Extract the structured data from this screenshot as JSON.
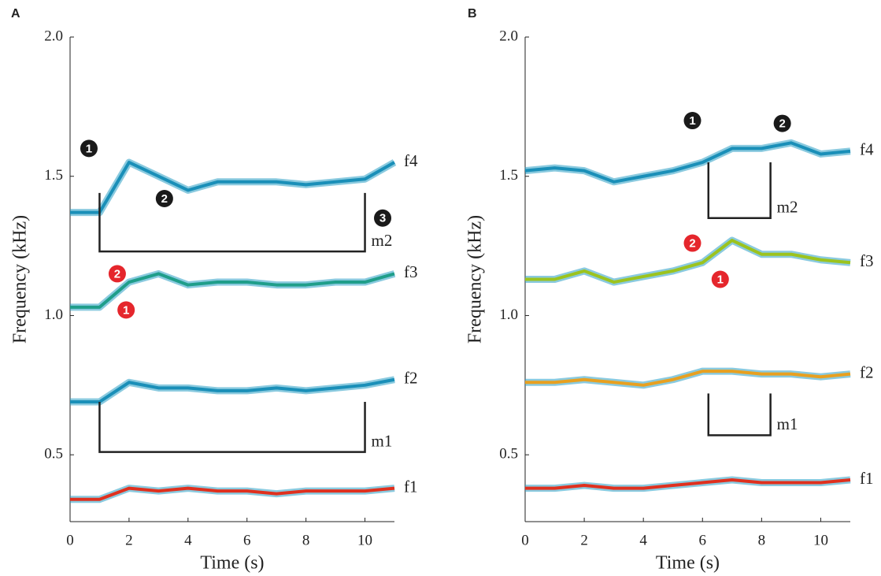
{
  "chart_data": [
    {
      "type": "spectrogram",
      "panel": "A",
      "xlabel": "Time (s)",
      "ylabel": "Frequency (kHz)",
      "xlim": [
        0,
        11
      ],
      "ylim": [
        0.26,
        2.0
      ],
      "xticks": [
        0,
        2,
        4,
        6,
        8,
        10
      ],
      "yticks": [
        0.5,
        {
          "value": 1,
          "label": "1.0"
        },
        1.5,
        {
          "value": 2,
          "label": "2.0"
        }
      ],
      "x": [
        0,
        1,
        2,
        3,
        4,
        5,
        6,
        7,
        8,
        9,
        10,
        11
      ],
      "series": [
        {
          "name": "f1",
          "color": "#e0301e",
          "values": [
            0.34,
            0.34,
            0.38,
            0.37,
            0.38,
            0.37,
            0.37,
            0.36,
            0.37,
            0.37,
            0.37,
            0.38
          ]
        },
        {
          "name": "f2",
          "color": "#1a8fb8",
          "values": [
            0.69,
            0.69,
            0.76,
            0.74,
            0.74,
            0.73,
            0.73,
            0.74,
            0.73,
            0.74,
            0.75,
            0.77
          ]
        },
        {
          "name": "f3",
          "color": "#1f9e8a",
          "values": [
            1.03,
            1.03,
            1.12,
            1.15,
            1.11,
            1.12,
            1.12,
            1.11,
            1.11,
            1.12,
            1.12,
            1.15
          ]
        },
        {
          "name": "f4",
          "color": "#1a8fb8",
          "values": [
            1.37,
            1.37,
            1.55,
            1.5,
            1.45,
            1.48,
            1.48,
            1.48,
            1.47,
            1.48,
            1.49,
            1.55
          ]
        }
      ],
      "brackets": [
        {
          "label": "m2",
          "x": [
            1,
            10
          ],
          "y": 1.23,
          "top": 1.44
        },
        {
          "label": "m1",
          "x": [
            1,
            10
          ],
          "y": 0.51,
          "top": 0.69
        }
      ],
      "markers": [
        {
          "label": "1",
          "color": "#1a1a1a",
          "t": 0.64,
          "f": 1.6
        },
        {
          "label": "2",
          "color": "#1a1a1a",
          "t": 3.2,
          "f": 1.42
        },
        {
          "label": "3",
          "color": "#1a1a1a",
          "t": 10.6,
          "f": 1.35
        },
        {
          "label": "2",
          "color": "#e5262c",
          "t": 1.6,
          "f": 1.15
        },
        {
          "label": "1",
          "color": "#e5262c",
          "t": 1.9,
          "f": 1.02
        }
      ]
    },
    {
      "type": "spectrogram",
      "panel": "B",
      "xlabel": "Time (s)",
      "ylabel": "Frequency (kHz)",
      "xlim": [
        0,
        11
      ],
      "ylim": [
        0.26,
        2.0
      ],
      "xticks": [
        0,
        2,
        4,
        6,
        8,
        10
      ],
      "yticks": [
        0.5,
        {
          "value": 1,
          "label": "1.0"
        },
        1.5,
        {
          "value": 2,
          "label": "2.0"
        }
      ],
      "x": [
        0,
        1,
        2,
        3,
        4,
        5,
        6,
        7,
        8,
        9,
        10,
        11
      ],
      "series": [
        {
          "name": "f1",
          "color": "#e0301e",
          "values": [
            0.38,
            0.38,
            0.39,
            0.38,
            0.38,
            0.39,
            0.4,
            0.41,
            0.4,
            0.4,
            0.4,
            0.41
          ]
        },
        {
          "name": "f2",
          "color": "#e8a020",
          "values": [
            0.76,
            0.76,
            0.77,
            0.76,
            0.75,
            0.77,
            0.8,
            0.8,
            0.79,
            0.79,
            0.78,
            0.79
          ]
        },
        {
          "name": "f3",
          "color": "#9cc31e",
          "values": [
            1.13,
            1.13,
            1.16,
            1.12,
            1.14,
            1.16,
            1.19,
            1.27,
            1.22,
            1.22,
            1.2,
            1.19
          ]
        },
        {
          "name": "f4",
          "color": "#1a8fb8",
          "values": [
            1.52,
            1.53,
            1.52,
            1.48,
            1.5,
            1.52,
            1.55,
            1.6,
            1.6,
            1.62,
            1.58,
            1.59
          ]
        }
      ],
      "brackets": [
        {
          "label": "m2",
          "x": [
            6.2,
            8.3
          ],
          "y": 1.35,
          "top": 1.55
        },
        {
          "label": "m1",
          "x": [
            6.2,
            8.3
          ],
          "y": 0.57,
          "top": 0.72
        }
      ],
      "markers": [
        {
          "label": "1",
          "color": "#1a1a1a",
          "t": 5.66,
          "f": 1.7
        },
        {
          "label": "2",
          "color": "#1a1a1a",
          "t": 8.7,
          "f": 1.69
        },
        {
          "label": "2",
          "color": "#e5262c",
          "t": 5.66,
          "f": 1.26
        },
        {
          "label": "1",
          "color": "#e5262c",
          "t": 6.6,
          "f": 1.13
        }
      ]
    }
  ]
}
